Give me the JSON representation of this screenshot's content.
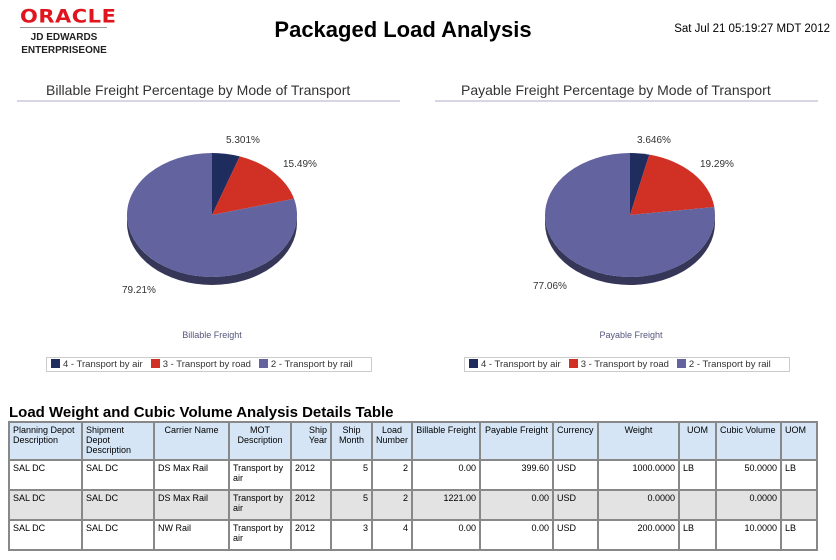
{
  "header": {
    "logo_oracle": "ORACLE",
    "logo_line1": "JD EDWARDS",
    "logo_line2": "ENTERPRISEONE",
    "title": "Packaged Load Analysis",
    "timestamp": "Sat Jul 21 05:19:27 MDT 2012"
  },
  "chart_data": [
    {
      "type": "pie",
      "title": "Billable Freight Percentage by Mode of Transport",
      "xlabel": "Billable Freight",
      "categories": [
        "4 - Transport by air",
        "3 - Transport by road",
        "2 - Transport by rail"
      ],
      "values": [
        5.301,
        15.49,
        79.21
      ],
      "labels": [
        "5.301%",
        "15.49%",
        "79.21%"
      ],
      "colors": [
        "#1f2d5e",
        "#d13124",
        "#6363a0"
      ],
      "legend": "bottom"
    },
    {
      "type": "pie",
      "title": "Payable Freight Percentage by Mode of Transport",
      "xlabel": "Payable Freight",
      "categories": [
        "4 - Transport by air",
        "3 - Transport by road",
        "2 - Transport by rail"
      ],
      "values": [
        3.646,
        19.29,
        77.06
      ],
      "labels": [
        "3.646%",
        "19.29%",
        "77.06%"
      ],
      "colors": [
        "#1f2d5e",
        "#d13124",
        "#6363a0"
      ],
      "legend": "bottom"
    }
  ],
  "table": {
    "title": "Load Weight and Cubic Volume Analysis Details Table",
    "headers": [
      "Planning Depot Description",
      "Shipment Depot Description",
      "Carrier Name",
      "MOT Description",
      "Ship Year",
      "Ship Month",
      "Load Number",
      "Billable Freight",
      "Payable Freight",
      "Currency",
      "Weight",
      "UOM",
      "Cubic Volume",
      "UOM"
    ],
    "rows": [
      [
        "SAL DC",
        "SAL DC",
        "DS Max Rail",
        "Transport by air",
        "2012",
        "5",
        "2",
        "0.00",
        "399.60",
        "USD",
        "1000.0000",
        "LB",
        "50.0000",
        "LB"
      ],
      [
        "SAL DC",
        "SAL DC",
        "DS Max Rail",
        "Transport by air",
        "2012",
        "5",
        "2",
        "1221.00",
        "0.00",
        "USD",
        "0.0000",
        "",
        "0.0000",
        ""
      ],
      [
        "SAL DC",
        "SAL DC",
        "NW Rail",
        "Transport by air",
        "2012",
        "3",
        "4",
        "0.00",
        "0.00",
        "USD",
        "200.0000",
        "LB",
        "10.0000",
        "LB"
      ]
    ]
  }
}
